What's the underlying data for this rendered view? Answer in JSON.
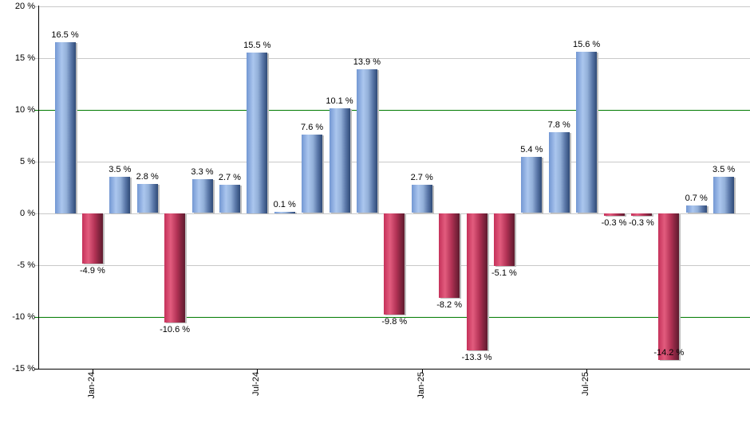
{
  "chart_data": {
    "type": "bar",
    "title": "",
    "description": "Monthly percentage returns bar chart",
    "unit": "%",
    "y_axis": {
      "ylim": [
        -15,
        20
      ],
      "tick_values": [
        20,
        15,
        10,
        5,
        0,
        -5,
        -10,
        -15
      ],
      "tick_labels": [
        "20 %",
        "15 %",
        "10 %",
        "5 %",
        "0 %",
        "-5 %",
        "-10 %",
        "-15 %"
      ],
      "special_gridlines": [
        10,
        -10
      ],
      "grid": true
    },
    "x_axis": {
      "ticks": [
        {
          "label": "Jan-24",
          "bar_index": 1
        },
        {
          "label": "Jul-24",
          "bar_index": 7
        },
        {
          "label": "Jan-25",
          "bar_index": 13
        },
        {
          "label": "Jul-25",
          "bar_index": 19
        }
      ]
    },
    "bars": [
      {
        "value": 16.5,
        "label": "16.5 %"
      },
      {
        "value": -4.9,
        "label": "-4.9 %"
      },
      {
        "value": 3.5,
        "label": "3.5 %"
      },
      {
        "value": 2.8,
        "label": "2.8 %"
      },
      {
        "value": -10.6,
        "label": "-10.6 %"
      },
      {
        "value": 3.3,
        "label": "3.3 %"
      },
      {
        "value": 2.7,
        "label": "2.7 %"
      },
      {
        "value": 15.5,
        "label": "15.5 %"
      },
      {
        "value": 0.1,
        "label": "0.1 %"
      },
      {
        "value": 7.6,
        "label": "7.6 %"
      },
      {
        "value": 10.1,
        "label": "10.1 %"
      },
      {
        "value": 13.9,
        "label": "13.9 %"
      },
      {
        "value": -9.8,
        "label": "-9.8 %"
      },
      {
        "value": 2.7,
        "label": "2.7 %"
      },
      {
        "value": -8.2,
        "label": "-8.2 %"
      },
      {
        "value": -13.3,
        "label": "-13.3 %"
      },
      {
        "value": -5.1,
        "label": "-5.1 %"
      },
      {
        "value": 5.4,
        "label": "5.4 %"
      },
      {
        "value": 7.8,
        "label": "7.8 %"
      },
      {
        "value": 15.6,
        "label": "15.6 %"
      },
      {
        "value": -0.3,
        "label": "-0.3 %"
      },
      {
        "value": -0.3,
        "label": "-0.3 %"
      },
      {
        "value": -14.2,
        "label": "-14.2 %"
      },
      {
        "value": 0.7,
        "label": "0.7 %"
      },
      {
        "value": 3.5,
        "label": "3.5 %"
      }
    ],
    "colors": {
      "positive_bar_gradient": [
        "#7397d3",
        "#abc6ee",
        "#93b0d9",
        "#5a77a8",
        "#2f4a77"
      ],
      "negative_bar_gradient": [
        "#c5315a",
        "#e25c7e",
        "#b43356",
        "#83243f",
        "#5e1b2e"
      ],
      "gridline": "#c9c9c9",
      "special_line": "#007a00",
      "axis": "#000000",
      "label_text": "#000000",
      "bar_shadow": "#bdbdbd",
      "background": "#ffffff"
    },
    "legend": null
  }
}
